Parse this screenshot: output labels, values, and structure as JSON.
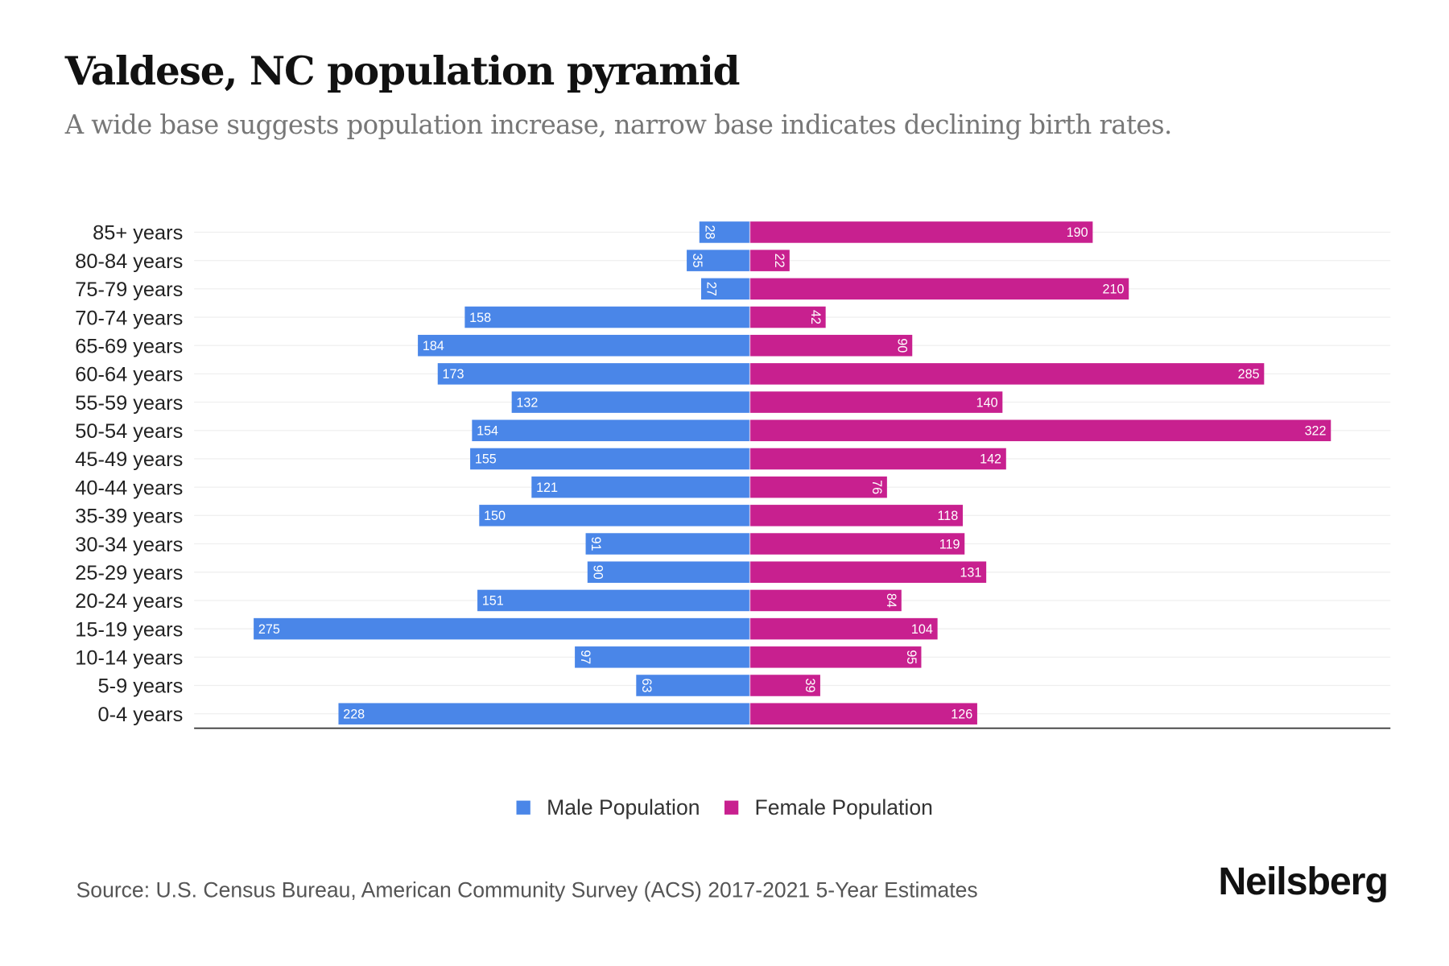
{
  "chart_data": {
    "type": "bar",
    "orientation": "horizontal-pyramid",
    "title": "Valdese, NC population pyramid",
    "subtitle": "A wide base suggests population increase, narrow base indicates declining birth rates.",
    "categories": [
      "85+ years",
      "80-84 years",
      "75-79 years",
      "70-74 years",
      "65-69 years",
      "60-64 years",
      "55-59 years",
      "50-54 years",
      "45-49 years",
      "40-44 years",
      "35-39 years",
      "30-34 years",
      "25-29 years",
      "20-24 years",
      "15-19 years",
      "10-14 years",
      "5-9 years",
      "0-4 years"
    ],
    "series": [
      {
        "name": "Male Population",
        "color": "#4a86e8",
        "values": [
          28,
          35,
          27,
          158,
          184,
          173,
          132,
          154,
          155,
          121,
          150,
          91,
          90,
          151,
          275,
          97,
          63,
          228
        ]
      },
      {
        "name": "Female Population",
        "color": "#c8208f",
        "values": [
          190,
          22,
          210,
          42,
          90,
          285,
          140,
          322,
          142,
          76,
          118,
          119,
          131,
          84,
          104,
          95,
          39,
          126
        ]
      }
    ],
    "xlim": [
      -308,
      355
    ],
    "legend": "bottom-center",
    "grid": true
  },
  "source": "Source: U.S. Census Bureau, American Community Survey (ACS) 2017-2021 5-Year Estimates",
  "brand": "Neilsberg"
}
